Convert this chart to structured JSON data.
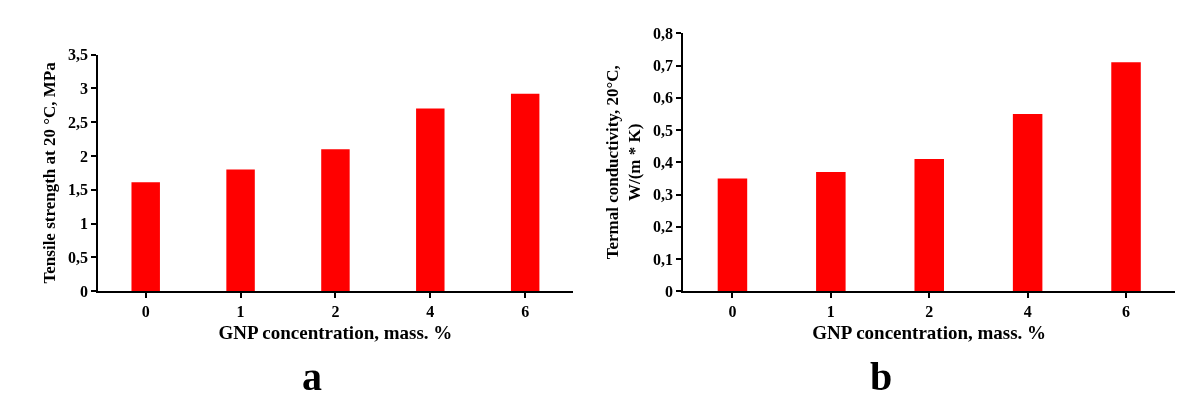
{
  "chart_data": [
    {
      "type": "bar",
      "xlabel": "GNP concentration, mass. %",
      "ylabel": "Tensile strength at 20 °C, MPa",
      "categories": [
        "0",
        "1",
        "2",
        "4",
        "6"
      ],
      "values": [
        1.61,
        1.8,
        2.1,
        2.7,
        2.92
      ],
      "color": "#ff0000",
      "ylim": [
        0,
        3.5
      ],
      "yticks": [
        0,
        {
          "value": 0.5,
          "label": "0,5"
        },
        1,
        {
          "value": 1.5,
          "label": "1,5"
        },
        2,
        {
          "value": 2.5,
          "label": "2,5"
        },
        3,
        {
          "value": 3.5,
          "label": "3,5"
        }
      ],
      "annotations": [
        "a"
      ]
    },
    {
      "type": "bar",
      "xlabel": "GNP concentration, mass. %",
      "ylabel": "Termal conductivity, 20°C,\nW/(m * K)",
      "categories": [
        "0",
        "1",
        "2",
        "4",
        "6"
      ],
      "values": [
        0.35,
        0.37,
        0.41,
        0.55,
        0.71
      ],
      "color": "#ff0000",
      "ylim": [
        0,
        0.8
      ],
      "yticks": [
        0,
        {
          "value": 0.1,
          "label": "0,1"
        },
        {
          "value": 0.2,
          "label": "0,2"
        },
        {
          "value": 0.3,
          "label": "0,3"
        },
        {
          "value": 0.4,
          "label": "0,4"
        },
        {
          "value": 0.5,
          "label": "0,5"
        },
        {
          "value": 0.6,
          "label": "0,6"
        },
        {
          "value": 0.7,
          "label": "0,7"
        },
        {
          "value": 0.8,
          "label": "0,8"
        }
      ],
      "annotations": [
        "b"
      ]
    }
  ]
}
